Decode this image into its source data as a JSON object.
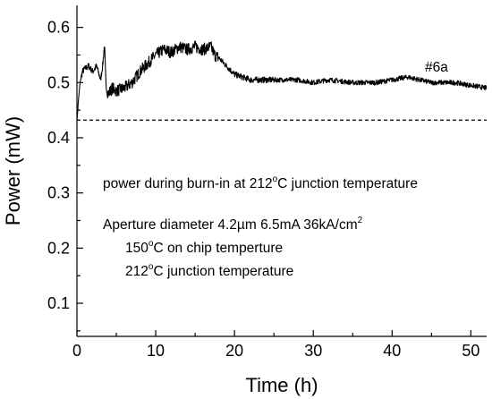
{
  "chart_data": {
    "type": "line",
    "xlabel": "Time (h)",
    "ylabel": "Power (mW)",
    "xlim": [
      0,
      52
    ],
    "ylim": [
      0.04,
      0.64
    ],
    "xticks": [
      0,
      10,
      20,
      30,
      40,
      50
    ],
    "yticks": [
      0.1,
      0.2,
      0.3,
      0.4,
      0.5,
      0.6
    ],
    "grid": false,
    "series": [
      {
        "name": "#6a",
        "x": [
          0,
          0.2,
          0.4,
          0.7,
          1,
          1.5,
          2,
          2.5,
          3,
          3.3,
          3.5,
          3.7,
          4,
          4.5,
          5,
          6,
          7,
          8,
          9,
          10,
          11,
          12,
          13,
          14,
          15,
          16,
          17,
          17.5,
          18,
          19,
          20,
          22,
          25,
          28,
          30,
          32,
          35,
          38,
          40,
          42,
          45,
          48,
          50,
          52
        ],
        "y": [
          0.43,
          0.47,
          0.5,
          0.52,
          0.525,
          0.53,
          0.52,
          0.53,
          0.505,
          0.535,
          0.57,
          0.49,
          0.48,
          0.49,
          0.485,
          0.49,
          0.5,
          0.52,
          0.535,
          0.55,
          0.56,
          0.555,
          0.565,
          0.56,
          0.565,
          0.56,
          0.565,
          0.55,
          0.545,
          0.53,
          0.515,
          0.505,
          0.505,
          0.505,
          0.5,
          0.505,
          0.5,
          0.5,
          0.505,
          0.51,
          0.5,
          0.5,
          0.495,
          0.49
        ]
      },
      {
        "x": [
          0,
          52
        ],
        "y": [
          0.432,
          0.432
        ]
      }
    ],
    "annotations": {
      "series_label": "#6a",
      "line1_pre": "power during burn-in at 212",
      "line1_sup": "o",
      "line1_post": "C junction temperature",
      "line2_pre": "Aperture diameter 4.2µm  6.5mA  36kA/cm",
      "line2_sup": "2",
      "line3_pre": "150",
      "line3_sup": "o",
      "line3_post": "C on chip temperture",
      "line4_pre": "212",
      "line4_sup": "o",
      "line4_post": "C junction temperature"
    }
  }
}
